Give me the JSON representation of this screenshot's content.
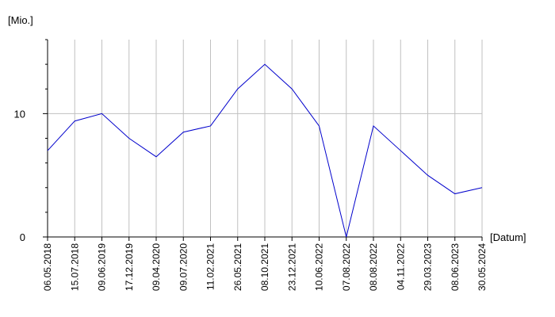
{
  "chart_data": {
    "type": "line",
    "y_label": "[Mio.]",
    "x_label": "[Datum]",
    "categories": [
      "06.05.2018",
      "15.07.2018",
      "09.06.2019",
      "17.12.2019",
      "09.04.2020",
      "09.07.2020",
      "11.02.2021",
      "26.05.2021",
      "08.10.2021",
      "23.12.2021",
      "10.06.2022",
      "07.08.2022",
      "08.08.2022",
      "04.11.2022",
      "29.03.2023",
      "08.06.2023",
      "30.05.2024"
    ],
    "values": [
      7,
      9.4,
      10,
      8,
      6.5,
      8.5,
      9,
      12,
      14,
      12,
      9,
      0,
      9,
      7,
      5,
      3.5,
      4
    ],
    "color": "#0000cc",
    "ylim": [
      0,
      16
    ],
    "yticks": [
      0,
      10
    ],
    "yminorticks": [
      2,
      4,
      6,
      8,
      12,
      14,
      16
    ],
    "grid": true
  }
}
